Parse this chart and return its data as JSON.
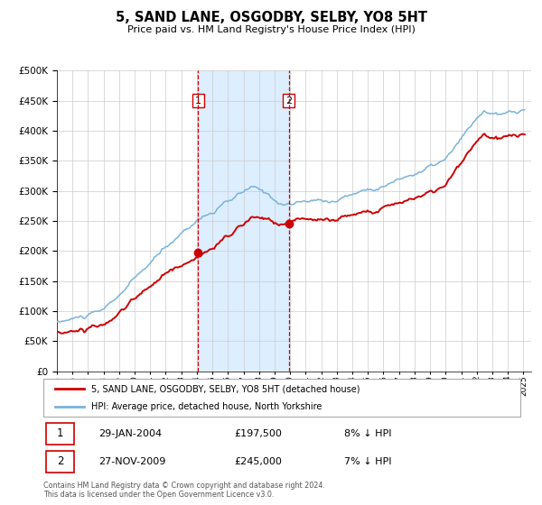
{
  "title": "5, SAND LANE, OSGODBY, SELBY, YO8 5HT",
  "subtitle": "Price paid vs. HM Land Registry's House Price Index (HPI)",
  "ylim": [
    0,
    500000
  ],
  "yticks": [
    0,
    50000,
    100000,
    150000,
    200000,
    250000,
    300000,
    350000,
    400000,
    450000,
    500000
  ],
  "xlim_start": 1995.0,
  "xlim_end": 2025.5,
  "sale1_x": 2004.08,
  "sale1_y": 197500,
  "sale1_label": "1",
  "sale1_date": "29-JAN-2004",
  "sale1_price": "£197,500",
  "sale1_hpi": "8% ↓ HPI",
  "sale2_x": 2009.92,
  "sale2_y": 245000,
  "sale2_label": "2",
  "sale2_date": "27-NOV-2009",
  "sale2_price": "£245,000",
  "sale2_hpi": "7% ↓ HPI",
  "red_line_color": "#cc0000",
  "blue_line_color": "#7ab3d9",
  "shaded_color": "#ddeeff",
  "grid_color": "#cccccc",
  "background_color": "#ffffff",
  "legend_label_red": "5, SAND LANE, OSGODBY, SELBY, YO8 5HT (detached house)",
  "legend_label_blue": "HPI: Average price, detached house, North Yorkshire",
  "footer": "Contains HM Land Registry data © Crown copyright and database right 2024.\nThis data is licensed under the Open Government Licence v3.0."
}
